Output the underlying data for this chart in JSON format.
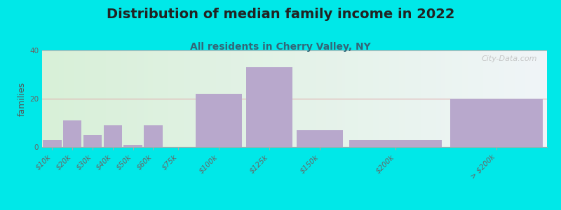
{
  "title": "Distribution of median family income in 2022",
  "subtitle": "All residents in Cherry Valley, NY",
  "ylabel": "families",
  "categories": [
    "$10k",
    "$20k",
    "$30k",
    "$40k",
    "$50k",
    "$60k",
    "$75k",
    "$100k",
    "$125k",
    "$150k",
    "$200k",
    "> $200k"
  ],
  "bin_left": [
    0,
    10,
    20,
    30,
    40,
    50,
    60,
    75,
    100,
    125,
    150,
    200
  ],
  "bin_right": [
    10,
    20,
    30,
    40,
    50,
    60,
    75,
    100,
    125,
    150,
    200,
    250
  ],
  "values": [
    3,
    11,
    5,
    9,
    1,
    9,
    0,
    22,
    33,
    7,
    3,
    20
  ],
  "bar_color": "#b8a8cc",
  "background_outer": "#00e8e8",
  "ylim": [
    0,
    40
  ],
  "yticks": [
    0,
    20,
    40
  ],
  "grid_color": "#e0b0b0",
  "title_fontsize": 14,
  "title_color": "#222222",
  "subtitle_fontsize": 10,
  "subtitle_color": "#336677",
  "ylabel_fontsize": 9,
  "tick_fontsize": 7.5,
  "watermark": "City-Data.com",
  "bg_left_color": "#d8f0d8",
  "bg_right_color": "#f0f5f8",
  "xmin": 0,
  "xmax": 250
}
